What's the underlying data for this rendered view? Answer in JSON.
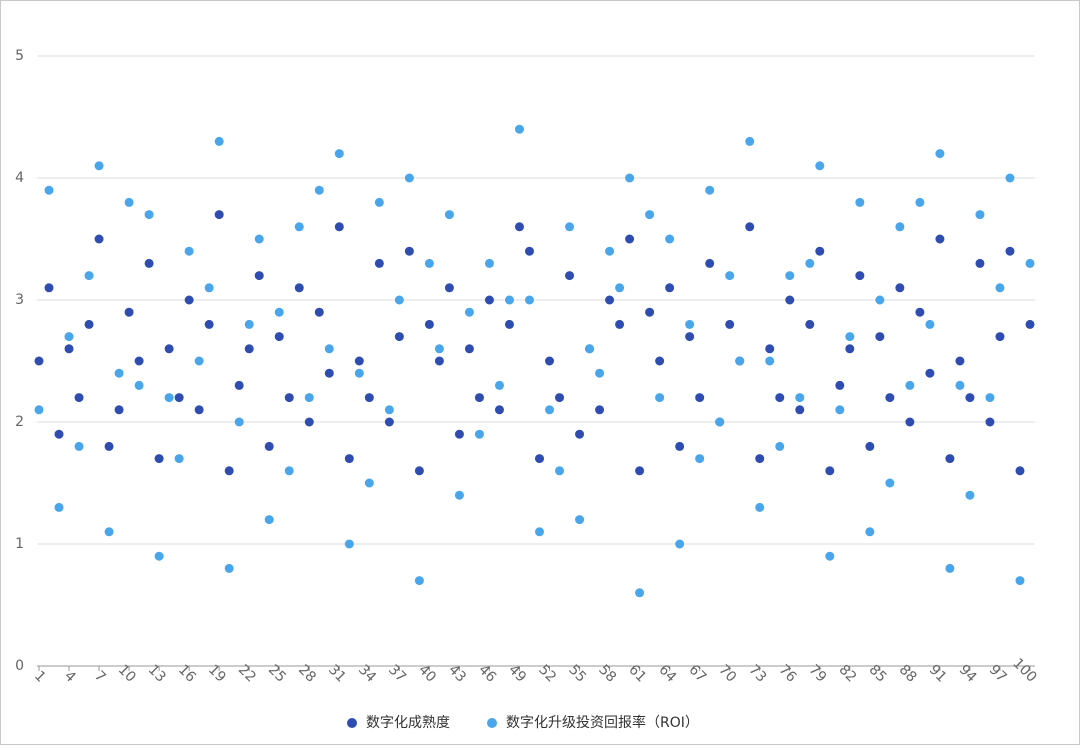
{
  "chart_data": {
    "type": "scatter",
    "x": [
      1,
      2,
      3,
      4,
      5,
      6,
      7,
      8,
      9,
      10,
      11,
      12,
      13,
      14,
      15,
      16,
      17,
      18,
      19,
      20,
      21,
      22,
      23,
      24,
      25,
      26,
      27,
      28,
      29,
      30,
      31,
      32,
      33,
      34,
      35,
      36,
      37,
      38,
      39,
      40,
      41,
      42,
      43,
      44,
      45,
      46,
      47,
      48,
      49,
      50,
      51,
      52,
      53,
      54,
      55,
      56,
      57,
      58,
      59,
      60,
      61,
      62,
      63,
      64,
      65,
      66,
      67,
      68,
      69,
      70,
      71,
      72,
      73,
      74,
      75,
      76,
      77,
      78,
      79,
      80,
      81,
      82,
      83,
      84,
      85,
      86,
      87,
      88,
      89,
      90,
      91,
      92,
      93,
      94,
      95,
      96,
      97,
      98,
      99,
      100
    ],
    "series": [
      {
        "name": "数字化成熟度",
        "color": "#2f4db0",
        "values": [
          2.5,
          3.1,
          1.9,
          2.6,
          2.2,
          2.8,
          3.5,
          1.8,
          2.1,
          2.9,
          2.5,
          3.3,
          1.7,
          2.6,
          2.2,
          3.0,
          2.1,
          2.8,
          3.7,
          1.6,
          2.3,
          2.6,
          3.2,
          1.8,
          2.7,
          2.2,
          3.1,
          2.0,
          2.9,
          2.4,
          3.6,
          1.7,
          2.5,
          2.2,
          3.3,
          2.0,
          2.7,
          3.4,
          1.6,
          2.8,
          2.5,
          3.1,
          1.9,
          2.6,
          2.2,
          3.0,
          2.1,
          2.8,
          3.6,
          3.4,
          1.7,
          2.5,
          2.2,
          3.2,
          1.9,
          2.6,
          2.1,
          3.0,
          2.8,
          3.5,
          1.6,
          2.9,
          2.5,
          3.1,
          1.8,
          2.7,
          2.2,
          3.3,
          2.0,
          2.8,
          2.5,
          3.6,
          1.7,
          2.6,
          2.2,
          3.0,
          2.1,
          2.8,
          3.4,
          1.6,
          2.3,
          2.6,
          3.2,
          1.8,
          2.7,
          2.2,
          3.1,
          2.0,
          2.9,
          2.4,
          3.5,
          1.7,
          2.5,
          2.2,
          3.3,
          2.0,
          2.7,
          3.4,
          1.6,
          2.8
        ]
      },
      {
        "name": "数字化升级投资回报率（ROI）",
        "color": "#4aa6ea",
        "values": [
          2.1,
          3.9,
          1.3,
          2.7,
          1.8,
          3.2,
          4.1,
          1.1,
          2.4,
          3.8,
          2.3,
          3.7,
          0.9,
          2.2,
          1.7,
          3.4,
          2.5,
          3.1,
          4.3,
          0.8,
          2.0,
          2.8,
          3.5,
          1.2,
          2.9,
          1.6,
          3.6,
          2.2,
          3.9,
          2.6,
          4.2,
          1.0,
          2.4,
          1.5,
          3.8,
          2.1,
          3.0,
          4.0,
          0.7,
          3.3,
          2.6,
          3.7,
          1.4,
          2.9,
          1.9,
          3.3,
          2.3,
          3.0,
          4.4,
          3.0,
          1.1,
          2.1,
          1.6,
          3.6,
          1.2,
          2.6,
          2.4,
          3.4,
          3.1,
          4.0,
          0.6,
          3.7,
          2.2,
          3.5,
          1.0,
          2.8,
          1.7,
          3.9,
          2.0,
          3.2,
          2.5,
          4.3,
          1.3,
          2.5,
          1.8,
          3.2,
          2.2,
          3.3,
          4.1,
          0.9,
          2.1,
          2.7,
          3.8,
          1.1,
          3.0,
          1.5,
          3.6,
          2.3,
          3.8,
          2.8,
          4.2,
          0.8,
          2.3,
          1.4,
          3.7,
          2.2,
          3.1,
          4.0,
          0.7,
          3.3
        ]
      }
    ],
    "xlim": [
      1,
      100
    ],
    "xticks": [
      1,
      4,
      7,
      10,
      13,
      16,
      19,
      22,
      25,
      28,
      31,
      34,
      37,
      40,
      43,
      46,
      49,
      52,
      55,
      58,
      61,
      64,
      67,
      70,
      73,
      76,
      79,
      82,
      85,
      88,
      91,
      94,
      97,
      100
    ],
    "ylim": [
      0,
      5
    ],
    "yticks": [
      0,
      1,
      2,
      3,
      4,
      5
    ],
    "grid": true,
    "legend": "bottom"
  }
}
